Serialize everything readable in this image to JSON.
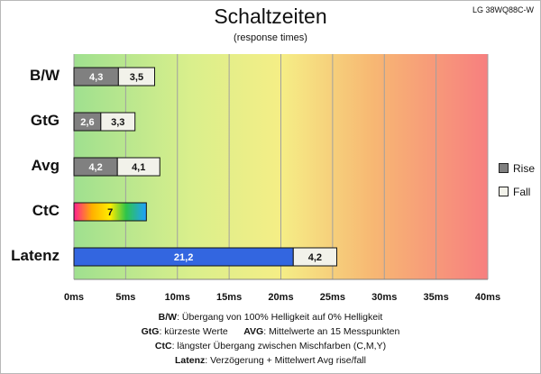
{
  "header": {
    "title": "Schaltzeiten",
    "subtitle": "(response times)",
    "model": "LG 38WQ88C-W"
  },
  "legend": [
    {
      "label": "Rise",
      "color": "#808080"
    },
    {
      "label": "Fall",
      "color": "#f2f2ea"
    }
  ],
  "notes": [
    {
      "k1": "B/W",
      "t1": ":  Übergang von 100% Helligkeit auf 0% Helligkeit",
      "k2": "",
      "t2": ""
    },
    {
      "k1": "GtG",
      "t1": ": kürzeste  Werte",
      "k2": "AVG",
      "t2": ": Mittelwerte  an 15 Messpunkten"
    },
    {
      "k1": "CtC",
      "t1": ": längster Übergang  zwischen Mischfarben  (C,M,Y)",
      "k2": "",
      "t2": ""
    },
    {
      "k1": "Latenz",
      "t1": ": Verzögerung  + Mittelwert Avg rise/fall",
      "k2": "",
      "t2": ""
    }
  ],
  "chart_data": {
    "type": "bar",
    "orientation": "horizontal",
    "stacked": true,
    "title": "Schaltzeiten",
    "subtitle": "(response times)",
    "xlim": [
      0,
      40
    ],
    "x_ticks": [
      0,
      5,
      10,
      15,
      20,
      25,
      30,
      35,
      40
    ],
    "x_tick_labels": [
      "0ms",
      "5ms",
      "10ms",
      "15ms",
      "20ms",
      "25ms",
      "30ms",
      "35ms",
      "40ms"
    ],
    "grid": true,
    "legend_position": "right",
    "background": "gradient green-yellow-red",
    "categories": [
      "B/W",
      "GtG",
      "Avg",
      "CtC",
      "Latenz"
    ],
    "series": [
      {
        "name": "Rise",
        "color": "#808080",
        "values": [
          4.3,
          2.6,
          4.2,
          null,
          null
        ],
        "labels": [
          "4,3",
          "2,6",
          "4,2",
          "",
          ""
        ]
      },
      {
        "name": "Fall",
        "color": "#f2f2ea",
        "values": [
          3.5,
          3.3,
          4.1,
          null,
          null
        ],
        "labels": [
          "3,5",
          "3,3",
          "4,1",
          "",
          ""
        ]
      }
    ],
    "extra_bars": [
      {
        "category": "CtC",
        "segments": [
          {
            "value": 7,
            "label": "7",
            "style": "rainbow"
          }
        ]
      },
      {
        "category": "Latenz",
        "segments": [
          {
            "value": 21.2,
            "label": "21,2",
            "color": "#3366e0"
          },
          {
            "value": 4.2,
            "label": "4,2",
            "color": "#f2f2ea"
          }
        ]
      }
    ]
  }
}
